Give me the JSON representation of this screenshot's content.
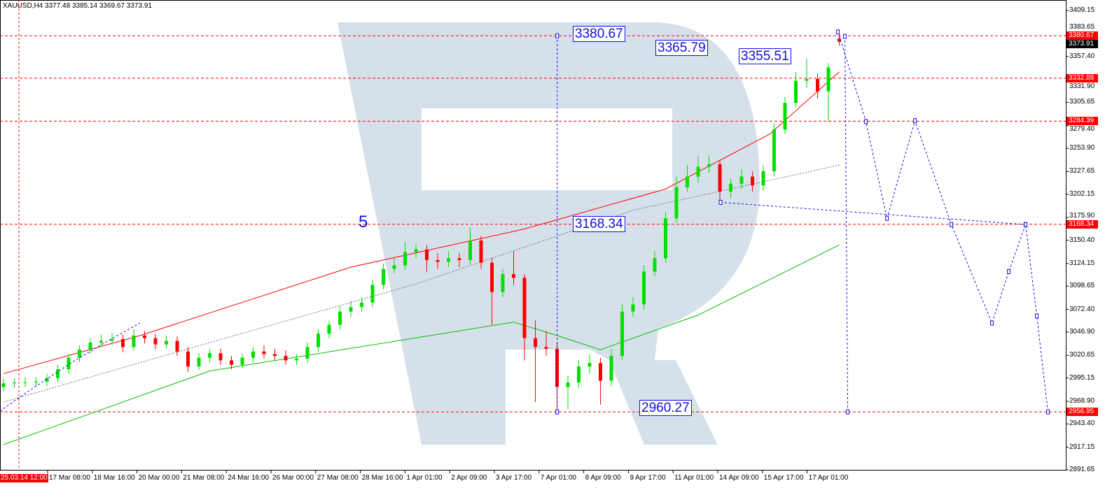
{
  "header": {
    "title": "XAUUSD,H4  3377.48 3385.14 3369.67 3373.91"
  },
  "colors": {
    "bull": "#00e000",
    "bear": "#ff0000",
    "ma_red": "#ff0000",
    "ma_gray": "#707070",
    "ma_green": "#00c000",
    "forecast": "#1010e0",
    "level": "#ff0000",
    "watermark": "#d6e0ea"
  },
  "annotations": {
    "a1": "3380.67",
    "a2": "3365.79",
    "a3": "3355.51",
    "a4": "3168.34",
    "a5": "2960.27",
    "wave": "5"
  },
  "chart_data": {
    "type": "candlestick",
    "symbol": "XAUUSD",
    "timeframe": "H4",
    "ylim": [
      2891.65,
      3409.15
    ],
    "y_ticks": [
      "3409.15",
      "3383.65",
      "3357.40",
      "3331.90",
      "3305.65",
      "3279.40",
      "3253.90",
      "3227.65",
      "3202.15",
      "3175.90",
      "3150.40",
      "3124.15",
      "3098.65",
      "3072.40",
      "3046.90",
      "3020.65",
      "2995.15",
      "2968.90",
      "2943.40",
      "2917.15",
      "2891.65"
    ],
    "x_first_label": "25.03.14 12:00",
    "x_ticks": [
      "17 Mar 08:00",
      "18 Mar 16:00",
      "20 Mar 00:00",
      "21 Mar 08:00",
      "24 Mar 16:00",
      "26 Mar 00:00",
      "27 Mar 08:00",
      "28 Mar 16:00",
      "1 Apr 01:00",
      "2 Apr 09:00",
      "3 Apr 17:00",
      "7 Apr 01:00",
      "8 Apr 09:00",
      "9 Apr 17:00",
      "11 Apr 01:00",
      "14 Apr 09:00",
      "15 Apr 17:00",
      "17 Apr 01:00"
    ],
    "levels": [
      {
        "value": "3380.67"
      },
      {
        "value": "3332.88"
      },
      {
        "value": "3284.39"
      },
      {
        "value": "3168.34"
      },
      {
        "value": "2956.95"
      }
    ],
    "current_price": "3373.91",
    "ohlc": [
      [
        2985,
        2994,
        2980,
        2989
      ],
      [
        2989,
        2995,
        2984,
        2990
      ],
      [
        2990,
        2996,
        2985,
        2990
      ],
      [
        2990,
        2996,
        2986,
        2991
      ],
      [
        2991,
        3000,
        2986,
        2995
      ],
      [
        2995,
        3010,
        2990,
        3005
      ],
      [
        3005,
        3023,
        3000,
        3018
      ],
      [
        3018,
        3032,
        3013,
        3027
      ],
      [
        3027,
        3040,
        3022,
        3035
      ],
      [
        3035,
        3044,
        3030,
        3037
      ],
      [
        3037,
        3046,
        3032,
        3039
      ],
      [
        3039,
        3044,
        3024,
        3030
      ],
      [
        3030,
        3050,
        3026,
        3043
      ],
      [
        3043,
        3048,
        3034,
        3040
      ],
      [
        3040,
        3045,
        3027,
        3033
      ],
      [
        3033,
        3043,
        3028,
        3037
      ],
      [
        3037,
        3042,
        3020,
        3025
      ],
      [
        3025,
        3030,
        3002,
        3008
      ],
      [
        3008,
        3023,
        3004,
        3018
      ],
      [
        3018,
        3028,
        3013,
        3023
      ],
      [
        3023,
        3028,
        3010,
        3015
      ],
      [
        3015,
        3020,
        3005,
        3010
      ],
      [
        3010,
        3023,
        3006,
        3018
      ],
      [
        3018,
        3030,
        3013,
        3025
      ],
      [
        3025,
        3032,
        3017,
        3022
      ],
      [
        3022,
        3028,
        3015,
        3020
      ],
      [
        3020,
        3026,
        3010,
        3015
      ],
      [
        3015,
        3022,
        3010,
        3017
      ],
      [
        3017,
        3035,
        3012,
        3030
      ],
      [
        3030,
        3050,
        3025,
        3045
      ],
      [
        3045,
        3060,
        3040,
        3055
      ],
      [
        3055,
        3076,
        3050,
        3070
      ],
      [
        3070,
        3082,
        3064,
        3075
      ],
      [
        3075,
        3086,
        3070,
        3080
      ],
      [
        3080,
        3106,
        3075,
        3100
      ],
      [
        3100,
        3124,
        3095,
        3118
      ],
      [
        3118,
        3130,
        3113,
        3122
      ],
      [
        3122,
        3148,
        3117,
        3137
      ],
      [
        3137,
        3146,
        3130,
        3140
      ],
      [
        3140,
        3145,
        3115,
        3128
      ],
      [
        3128,
        3136,
        3118,
        3126
      ],
      [
        3126,
        3138,
        3120,
        3130
      ],
      [
        3130,
        3136,
        3120,
        3128
      ],
      [
        3128,
        3165,
        3123,
        3150
      ],
      [
        3150,
        3155,
        3118,
        3125
      ],
      [
        3125,
        3130,
        3055,
        3092
      ],
      [
        3092,
        3118,
        3086,
        3112
      ],
      [
        3112,
        3138,
        3100,
        3108
      ],
      [
        3108,
        3112,
        3015,
        3040
      ],
      [
        3040,
        3060,
        2968,
        3030
      ],
      [
        3030,
        3048,
        3020,
        3028
      ],
      [
        3028,
        3035,
        2957,
        2985
      ],
      [
        2985,
        2998,
        2960,
        2990
      ],
      [
        2990,
        3015,
        2984,
        3008
      ],
      [
        3008,
        3022,
        3000,
        3012
      ],
      [
        3012,
        3018,
        2965,
        2992
      ],
      [
        2992,
        3028,
        2986,
        3020
      ],
      [
        3020,
        3078,
        3015,
        3070
      ],
      [
        3070,
        3086,
        3064,
        3078
      ],
      [
        3078,
        3122,
        3072,
        3115
      ],
      [
        3115,
        3138,
        3110,
        3130
      ],
      [
        3130,
        3182,
        3125,
        3175
      ],
      [
        3175,
        3222,
        3170,
        3210
      ],
      [
        3210,
        3235,
        3205,
        3222
      ],
      [
        3222,
        3245,
        3215,
        3233
      ],
      [
        3233,
        3246,
        3226,
        3236
      ],
      [
        3236,
        3240,
        3195,
        3205
      ],
      [
        3205,
        3220,
        3198,
        3214
      ],
      [
        3214,
        3230,
        3208,
        3222
      ],
      [
        3222,
        3228,
        3205,
        3212
      ],
      [
        3212,
        3235,
        3206,
        3228
      ],
      [
        3228,
        3282,
        3222,
        3275
      ],
      [
        3275,
        3312,
        3270,
        3305
      ],
      [
        3305,
        3340,
        3300,
        3330
      ],
      [
        3330,
        3355,
        3322,
        3332
      ],
      [
        3332,
        3338,
        3310,
        3318
      ],
      [
        3318,
        3350,
        3284,
        3345
      ],
      [
        3377.48,
        3385.14,
        3369.67,
        3373.91
      ]
    ],
    "moving_averages": [
      {
        "style": "solid",
        "color": "#ff0000",
        "points": [
          {
            "bar": 0,
            "value": 3000
          },
          {
            "bar": 12.6,
            "value": 3043
          },
          {
            "bar": 32,
            "value": 3120
          },
          {
            "bar": 48,
            "value": 3163
          },
          {
            "bar": 61,
            "value": 3208
          },
          {
            "bar": 70.6,
            "value": 3270
          },
          {
            "bar": 77,
            "value": 3340
          }
        ]
      },
      {
        "style": "dotted",
        "color": "#707070",
        "points": [
          {
            "bar": 0,
            "value": 2968
          },
          {
            "bar": 19,
            "value": 3035
          },
          {
            "bar": 38,
            "value": 3101
          },
          {
            "bar": 58,
            "value": 3184
          },
          {
            "bar": 77,
            "value": 3235
          }
        ]
      },
      {
        "style": "solid",
        "color": "#00c000",
        "points": [
          {
            "bar": 0,
            "value": 2920
          },
          {
            "bar": 19,
            "value": 3003
          },
          {
            "bar": 47,
            "value": 3058
          },
          {
            "bar": 51,
            "value": 3043
          },
          {
            "bar": 55,
            "value": 3027
          },
          {
            "bar": 64,
            "value": 3066
          },
          {
            "bar": 77,
            "value": 3145
          }
        ]
      }
    ],
    "forecast": [
      {
        "name": "main-path",
        "points": [
          {
            "time": "17 Apr 23:00",
            "value": 3385
          },
          {
            "time": "18 Apr 19:00",
            "value": 3284
          },
          {
            "time": "19 Apr 10:00",
            "value": 3175
          },
          {
            "time": "20 Apr 06:00",
            "value": 3285
          },
          {
            "time": "21 Apr 08:00",
            "value": 3168
          },
          {
            "time": "22 Apr 13:00",
            "value": 3057
          },
          {
            "time": "23 Apr 01:00",
            "value": 3115
          },
          {
            "time": "23 Apr 13:00",
            "value": 3168
          },
          {
            "time": "23 Apr 21:00",
            "value": 3065
          },
          {
            "time": "24 Apr 05:00",
            "value": 2957
          }
        ]
      },
      {
        "name": "drop-path",
        "points": [
          {
            "time": "18 Apr 04:00",
            "value": 3380
          },
          {
            "time": "18 Apr 06:00",
            "value": 2957
          }
        ]
      },
      {
        "name": "support-line",
        "points": [
          {
            "time": "14 Apr 11:00",
            "value": 3193
          },
          {
            "time": "23 Apr 13:00",
            "value": 3168
          }
        ]
      },
      {
        "name": "vertical-measure",
        "points": [
          {
            "time": "7 Apr 14:00",
            "value": 3380.67
          },
          {
            "time": "7 Apr 14:00",
            "value": 2956.95
          }
        ]
      }
    ]
  }
}
